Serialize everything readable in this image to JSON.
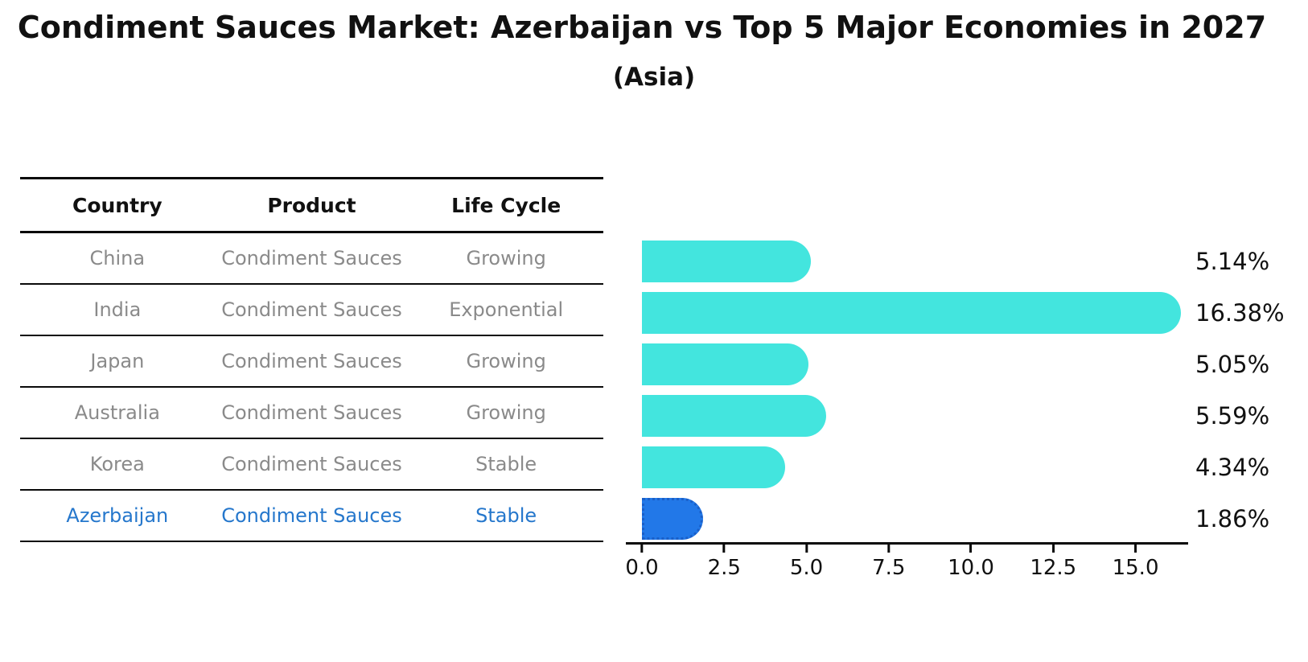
{
  "title": "Condiment Sauces Market: Azerbaijan vs Top 5 Major Economies in 2027",
  "subtitle": "(Asia)",
  "table": {
    "headers": [
      "Country",
      "Product",
      "Life Cycle"
    ],
    "rows": [
      {
        "country": "China",
        "product": "Condiment Sauces",
        "life_cycle": "Growing"
      },
      {
        "country": "India",
        "product": "Condiment Sauces",
        "life_cycle": "Exponential"
      },
      {
        "country": "Japan",
        "product": "Condiment Sauces",
        "life_cycle": "Growing"
      },
      {
        "country": "Australia",
        "product": "Condiment Sauces",
        "life_cycle": "Growing"
      },
      {
        "country": "Korea",
        "product": "Condiment Sauces",
        "life_cycle": "Stable"
      },
      {
        "country": "Azerbaijan",
        "product": "Condiment Sauces",
        "life_cycle": "Stable"
      }
    ]
  },
  "chart_data": {
    "type": "bar",
    "orientation": "horizontal",
    "title": "Condiment Sauces Market: Azerbaijan vs Top 5 Major Economies in 2027",
    "subtitle": "(Asia)",
    "categories": [
      "China",
      "India",
      "Japan",
      "Australia",
      "Korea",
      "Azerbaijan"
    ],
    "values": [
      5.14,
      16.38,
      5.05,
      5.59,
      4.34,
      1.86
    ],
    "value_labels": [
      "5.14%",
      "16.38%",
      "5.05%",
      "5.59%",
      "4.34%",
      "1.86%"
    ],
    "x_ticks": [
      "0.0",
      "2.5",
      "5.0",
      "7.5",
      "10.0",
      "12.5",
      "15.0"
    ],
    "x_tick_values": [
      0,
      2.5,
      5,
      7.5,
      10,
      12.5,
      15
    ],
    "xlim": [
      0,
      16.6
    ],
    "grid": false,
    "legend": false,
    "bar_color": "#43E5DE",
    "highlight_index": 5,
    "highlight_color": "#2278E8",
    "highlight_edge_color": "#1A5FC8",
    "highlight_edge_style": "dotted"
  },
  "colors": {
    "row_text": "#8a8a8a",
    "header_text": "#111111",
    "highlight_text": "#2577cc",
    "axis": "#0a0a0a",
    "background": "#ffffff"
  }
}
